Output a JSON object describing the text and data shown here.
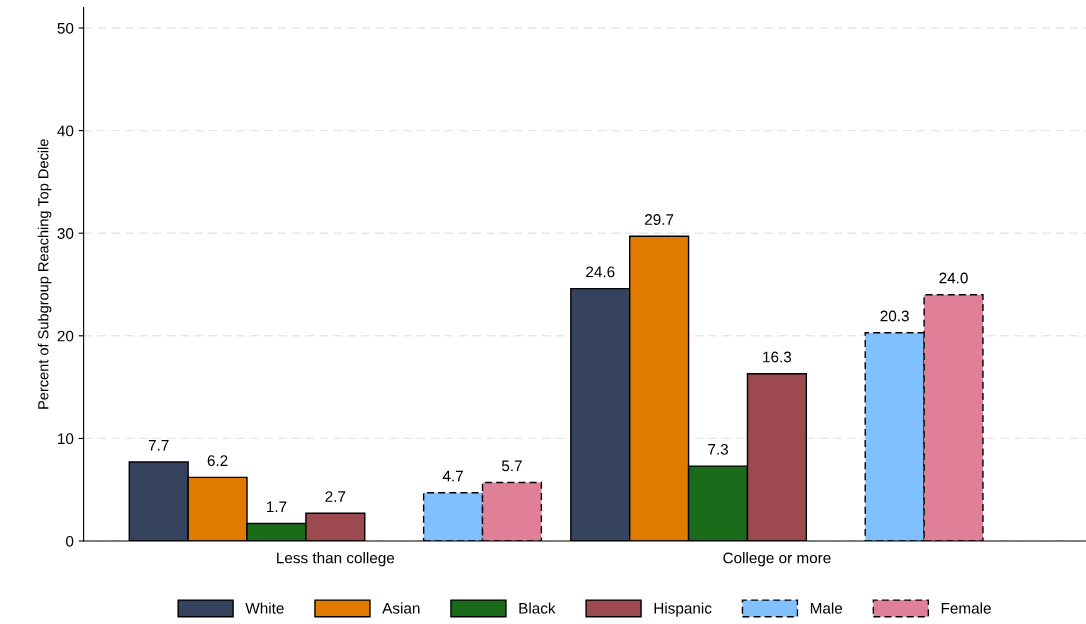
{
  "chart_data": {
    "type": "bar",
    "ylabel": "Percent of Subgroup Reaching Top Decile",
    "categories": [
      "Less than college",
      "College or more"
    ],
    "series": [
      {
        "name": "White",
        "color": "#35435f",
        "values": [
          7.7,
          24.6
        ],
        "value_labels": [
          "7.7",
          "24.6"
        ]
      },
      {
        "name": "Asian",
        "color": "#e07b00",
        "values": [
          6.2,
          29.7
        ],
        "value_labels": [
          "6.2",
          "29.7"
        ]
      },
      {
        "name": "Black",
        "color": "#1a6b1a",
        "values": [
          1.7,
          7.3
        ],
        "value_labels": [
          "1.7",
          "7.3"
        ]
      },
      {
        "name": "Hispanic",
        "color": "#9c4a4f",
        "values": [
          2.7,
          16.3
        ],
        "value_labels": [
          "2.7",
          "16.3"
        ]
      },
      {
        "name": "Male",
        "color": "#80c0ff",
        "values": [
          4.7,
          20.3
        ],
        "value_labels": [
          "4.7",
          "20.3"
        ],
        "line_style": "dashed"
      },
      {
        "name": "Female",
        "color": "#e08098",
        "values": [
          5.7,
          24.0
        ],
        "value_labels": [
          "5.7",
          "24.0"
        ],
        "line_style": "dashed"
      }
    ],
    "ylim": [
      0,
      52
    ],
    "yticks": [
      0,
      10,
      20,
      30,
      40,
      50
    ],
    "grid": "y",
    "legend": "bottom"
  }
}
